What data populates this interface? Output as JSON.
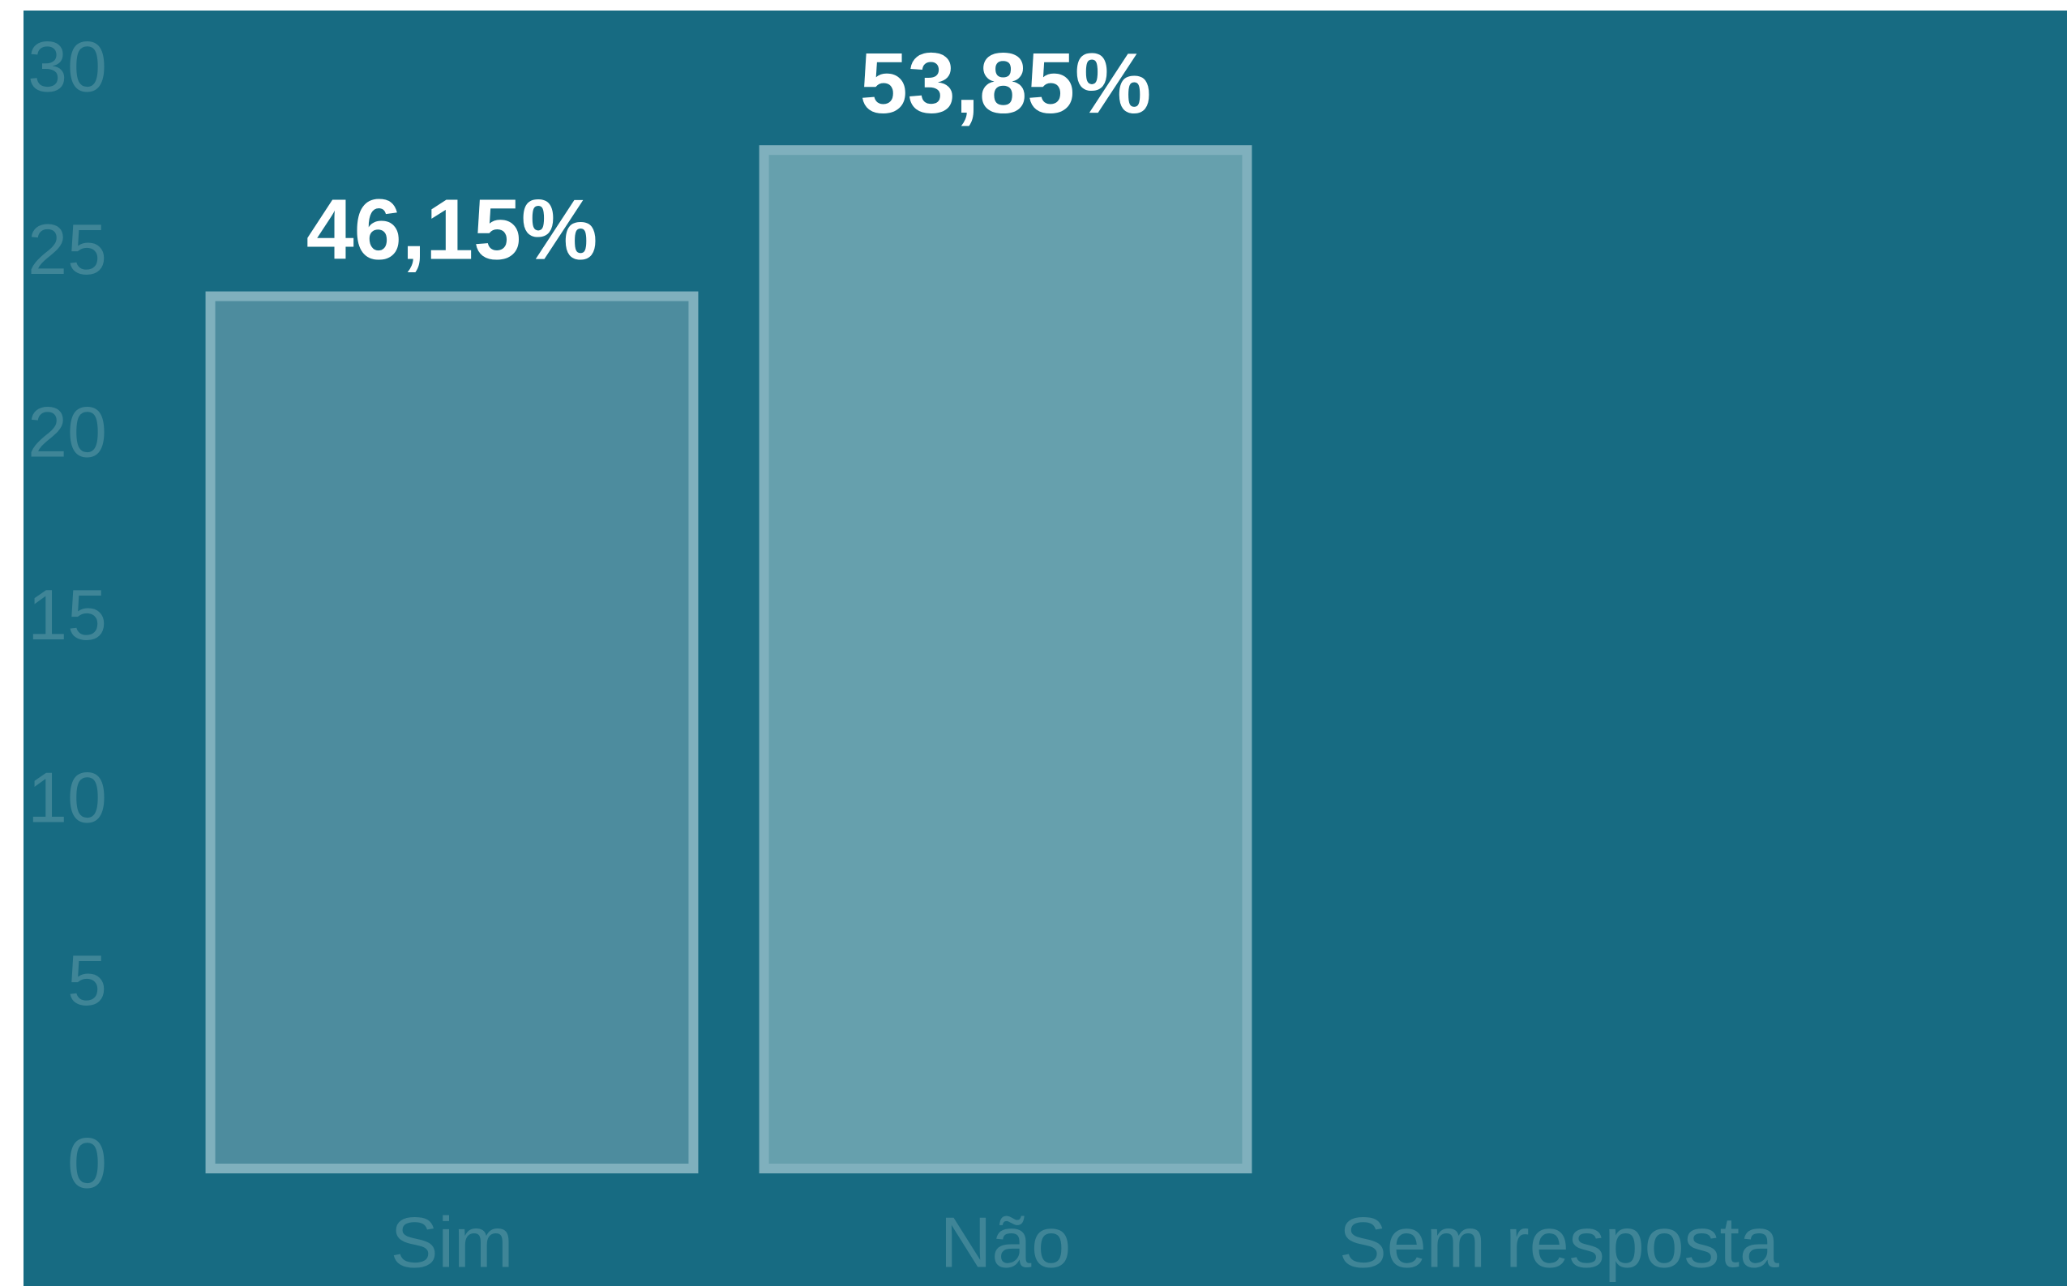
{
  "chart_data": {
    "type": "bar",
    "categories": [
      "Sim",
      "Não",
      "Sem resposta"
    ],
    "values": [
      24,
      28,
      0
    ],
    "value_labels": [
      "46,15%",
      "53,85%",
      null
    ],
    "colors": [
      "#4d8c9e",
      "#66a0ad",
      "#66a0ad"
    ],
    "ylim": [
      0,
      30
    ],
    "yticks": [
      0,
      5,
      10,
      15,
      20,
      25,
      30
    ],
    "grid": false
  }
}
